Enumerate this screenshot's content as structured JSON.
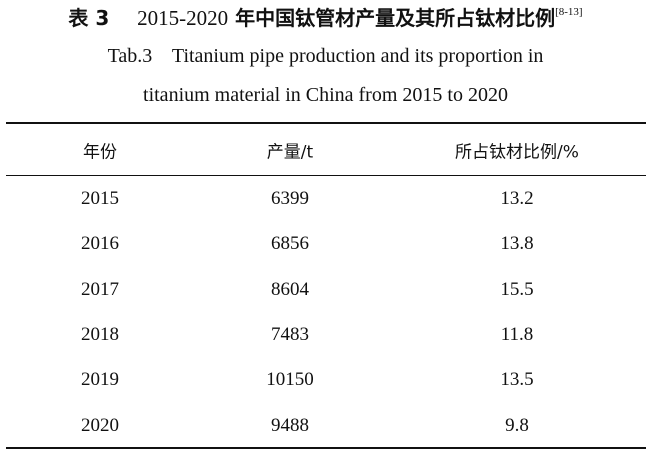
{
  "caption": {
    "label_cn": "表 3",
    "years_cn": "2015-2020",
    "title_cn": "年中国钛管材产量及其所占钛材比例",
    "ref": "[8-13]",
    "line1_en": "Tab.3    Titanium pipe production and its proportion in",
    "line2_en": "titanium material in China from 2015 to 2020"
  },
  "table": {
    "headers": [
      "年份",
      "产量/t",
      "所占钛材比例/%"
    ],
    "rows": [
      [
        "2015",
        "6399",
        "13.2"
      ],
      [
        "2016",
        "6856",
        "13.8"
      ],
      [
        "2017",
        "8604",
        "15.5"
      ],
      [
        "2018",
        "7483",
        "11.8"
      ],
      [
        "2019",
        "10150",
        "13.5"
      ],
      [
        "2020",
        "9488",
        "9.8"
      ]
    ]
  }
}
